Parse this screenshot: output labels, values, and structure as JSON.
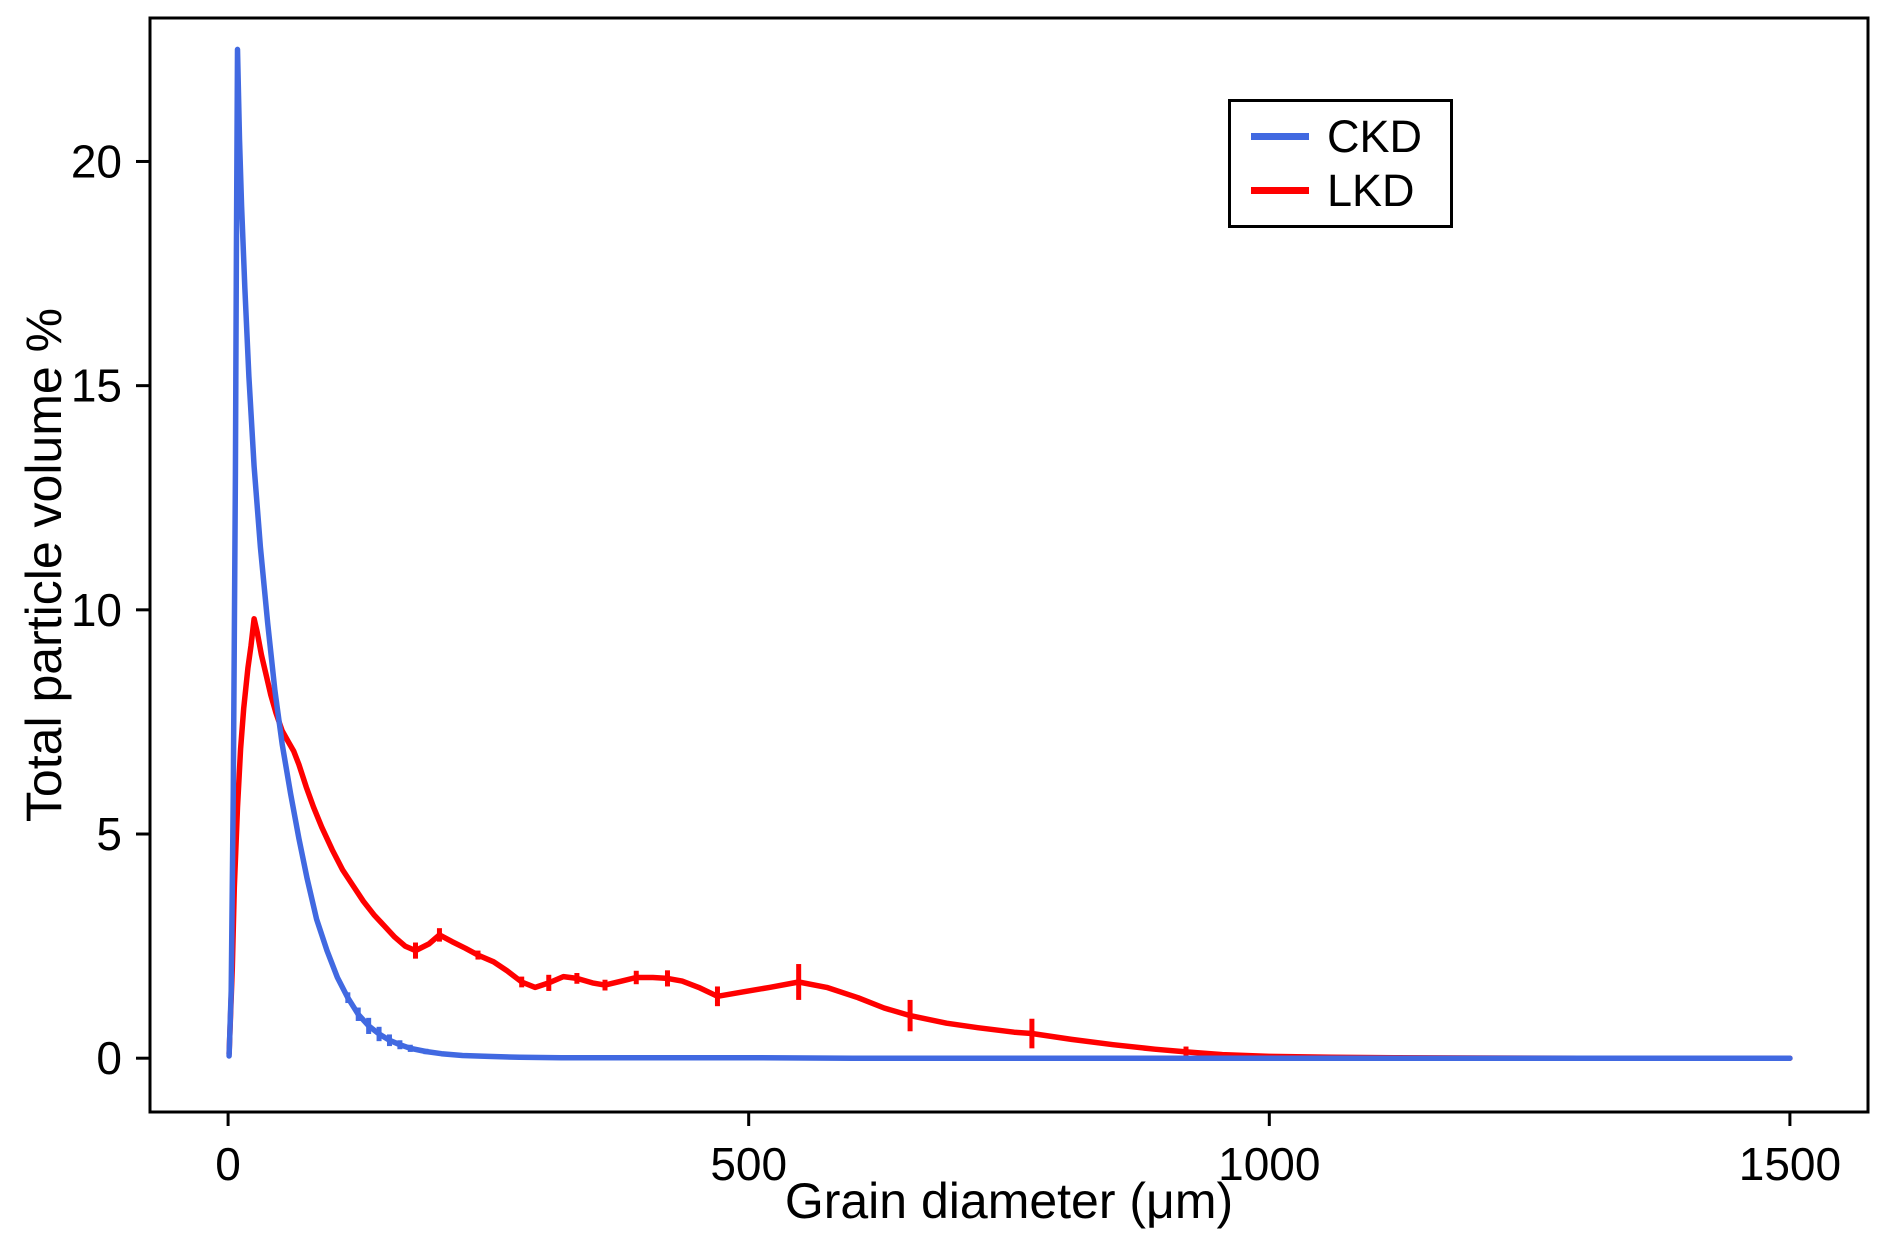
{
  "chart_data": {
    "type": "line",
    "title": "",
    "xlabel": "Grain diameter (μm)",
    "ylabel": "Total particle volume %",
    "xlim": [
      -75,
      1575
    ],
    "ylim": [
      -1.2,
      23.2
    ],
    "x_ticks": [
      0,
      500,
      1000,
      1500
    ],
    "y_ticks": [
      0,
      5,
      10,
      15,
      20
    ],
    "grid": false,
    "legend_position": "top-right-inside",
    "background": "#FFFFFF",
    "border_color": "#000000",
    "tick_label_color": "#000000",
    "series": [
      {
        "name": "CKD",
        "color": "#4169E1",
        "points": [
          [
            1,
            0.05
          ],
          [
            3,
            1.5
          ],
          [
            5,
            6.0
          ],
          [
            7,
            13.0
          ],
          [
            8,
            18.0
          ],
          [
            9,
            22.5
          ],
          [
            11,
            20.5
          ],
          [
            13,
            19.0
          ],
          [
            16,
            17.2
          ],
          [
            20,
            15.2
          ],
          [
            25,
            13.2
          ],
          [
            31,
            11.4
          ],
          [
            38,
            9.7
          ],
          [
            45,
            8.2
          ],
          [
            52,
            7.0
          ],
          [
            60,
            5.9
          ],
          [
            68,
            4.9
          ],
          [
            76,
            4.0
          ],
          [
            85,
            3.1
          ],
          [
            95,
            2.4
          ],
          [
            105,
            1.8
          ],
          [
            115,
            1.35,
            0.12
          ],
          [
            125,
            0.98,
            0.15
          ],
          [
            135,
            0.72,
            0.18
          ],
          [
            145,
            0.54,
            0.16
          ],
          [
            155,
            0.4,
            0.13
          ],
          [
            165,
            0.3,
            0.1
          ],
          [
            175,
            0.22,
            0.08
          ],
          [
            190,
            0.15,
            0.06
          ],
          [
            205,
            0.1,
            0.05
          ],
          [
            225,
            0.06
          ],
          [
            250,
            0.04
          ],
          [
            280,
            0.02
          ],
          [
            320,
            0.01
          ],
          [
            400,
            0.01
          ],
          [
            500,
            0.01
          ],
          [
            600,
            0
          ],
          [
            750,
            0
          ],
          [
            900,
            0
          ],
          [
            1100,
            0
          ],
          [
            1300,
            0
          ],
          [
            1500,
            0
          ]
        ]
      },
      {
        "name": "LKD",
        "color": "#FF0000",
        "points": [
          [
            1,
            0.1
          ],
          [
            4,
            2.0
          ],
          [
            6,
            3.8
          ],
          [
            9,
            5.6
          ],
          [
            12,
            6.9
          ],
          [
            15,
            7.8
          ],
          [
            19,
            8.7
          ],
          [
            22,
            9.2
          ],
          [
            25,
            9.8
          ],
          [
            28,
            9.5
          ],
          [
            32,
            9.0
          ],
          [
            36,
            8.6
          ],
          [
            41,
            8.1
          ],
          [
            46,
            7.7
          ],
          [
            52,
            7.3
          ],
          [
            58,
            7.05
          ],
          [
            63,
            6.85
          ],
          [
            68,
            6.55
          ],
          [
            75,
            6.05
          ],
          [
            82,
            5.6
          ],
          [
            90,
            5.15
          ],
          [
            100,
            4.65
          ],
          [
            110,
            4.2
          ],
          [
            120,
            3.85
          ],
          [
            130,
            3.5
          ],
          [
            140,
            3.2
          ],
          [
            150,
            2.95
          ],
          [
            160,
            2.7
          ],
          [
            170,
            2.5
          ],
          [
            180,
            2.4,
            0.18
          ],
          [
            193,
            2.55
          ],
          [
            203,
            2.75,
            0.15
          ],
          [
            215,
            2.6
          ],
          [
            228,
            2.45
          ],
          [
            240,
            2.3,
            0.1
          ],
          [
            255,
            2.15
          ],
          [
            268,
            1.95
          ],
          [
            282,
            1.7,
            0.12
          ],
          [
            295,
            1.58
          ],
          [
            308,
            1.68,
            0.18
          ],
          [
            322,
            1.82
          ],
          [
            335,
            1.78,
            0.12
          ],
          [
            350,
            1.68
          ],
          [
            362,
            1.63,
            0.12
          ],
          [
            378,
            1.72
          ],
          [
            392,
            1.8,
            0.15
          ],
          [
            408,
            1.8
          ],
          [
            422,
            1.78,
            0.18
          ],
          [
            436,
            1.72
          ],
          [
            452,
            1.58
          ],
          [
            470,
            1.38,
            0.22
          ],
          [
            495,
            1.48
          ],
          [
            520,
            1.58
          ],
          [
            548,
            1.7,
            0.4
          ],
          [
            575,
            1.58
          ],
          [
            605,
            1.35
          ],
          [
            630,
            1.12
          ],
          [
            655,
            0.95,
            0.35
          ],
          [
            690,
            0.78
          ],
          [
            720,
            0.68
          ],
          [
            755,
            0.58
          ],
          [
            772,
            0.55,
            0.33
          ],
          [
            810,
            0.42
          ],
          [
            850,
            0.3
          ],
          [
            890,
            0.2
          ],
          [
            920,
            0.14,
            0.12
          ],
          [
            955,
            0.08
          ],
          [
            1000,
            0.04
          ],
          [
            1060,
            0.02
          ],
          [
            1120,
            0.01
          ],
          [
            1200,
            0.005
          ],
          [
            1300,
            0
          ],
          [
            1400,
            0
          ],
          [
            1500,
            0
          ]
        ]
      }
    ]
  }
}
